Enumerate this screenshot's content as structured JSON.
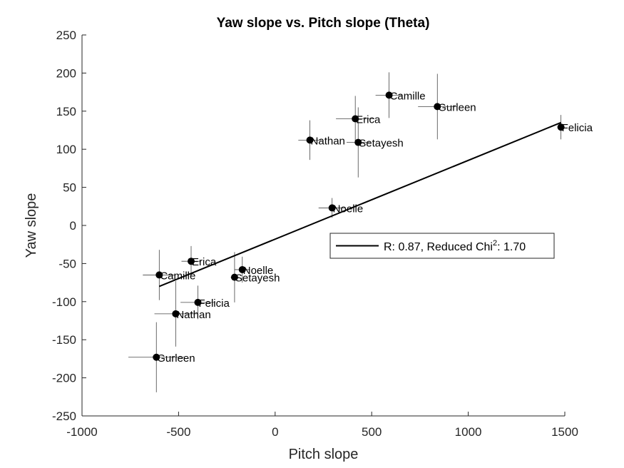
{
  "chart_data": {
    "type": "scatter",
    "title": "Yaw slope vs. Pitch slope (Theta)",
    "xlabel": "Pitch slope",
    "ylabel": "Yaw slope",
    "xlim": [
      -1000,
      1500
    ],
    "ylim": [
      -250,
      250
    ],
    "xticks": [
      -1000,
      -500,
      0,
      500,
      1000,
      1500
    ],
    "yticks": [
      -250,
      -200,
      -150,
      -100,
      -50,
      0,
      50,
      100,
      150,
      200,
      250
    ],
    "grid": false,
    "legend_position": "right",
    "points": [
      {
        "label": "Camille",
        "x": 590,
        "y": 171,
        "xerr": 70,
        "yerr": 30
      },
      {
        "label": "Gurleen",
        "x": 840,
        "y": 156,
        "xerr": 100,
        "yerr": 43
      },
      {
        "label": "Erica",
        "x": 415,
        "y": 140,
        "xerr": 100,
        "yerr": 30
      },
      {
        "label": "Nathan",
        "x": 180,
        "y": 112,
        "xerr": 60,
        "yerr": 26
      },
      {
        "label": "Setayesh",
        "x": 430,
        "y": 109,
        "xerr": 60,
        "yerr": 46
      },
      {
        "label": "Felicia",
        "x": 1480,
        "y": 129,
        "xerr": 15,
        "yerr": 16
      },
      {
        "label": "Noelle",
        "x": 295,
        "y": 23,
        "xerr": 70,
        "yerr": 13
      },
      {
        "label": "Erica",
        "x": -435,
        "y": -47,
        "xerr": 50,
        "yerr": 20
      },
      {
        "label": "Camille",
        "x": -600,
        "y": -65,
        "xerr": 85,
        "yerr": 33
      },
      {
        "label": "Noelle",
        "x": -170,
        "y": -58,
        "xerr": 40,
        "yerr": 17
      },
      {
        "label": "Setayesh",
        "x": -210,
        "y": -68,
        "xerr": 20,
        "yerr": 33
      },
      {
        "label": "Felicia",
        "x": -400,
        "y": -101,
        "xerr": 90,
        "yerr": 22
      },
      {
        "label": "Nathan",
        "x": -515,
        "y": -116,
        "xerr": 110,
        "yerr": 43
      },
      {
        "label": "Gurleen",
        "x": -615,
        "y": -173,
        "xerr": 145,
        "yerr": 46
      }
    ],
    "fit_line": {
      "x": [
        -600,
        1480
      ],
      "y": [
        -80,
        135
      ]
    },
    "legend": {
      "text_prefix": "R: 0.87, Reduced Chi",
      "superscript": "2",
      "text_suffix": ": 1.70"
    },
    "colors": {
      "points": "#000000",
      "errorbars": "#444444",
      "axes": "#262626",
      "fit": "#000000"
    }
  }
}
